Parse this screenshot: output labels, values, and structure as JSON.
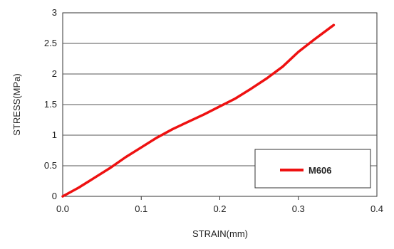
{
  "chart_data": {
    "type": "line",
    "title": "",
    "xlabel": "STRAIN(mm)",
    "ylabel": "STRESS(MPa)",
    "xlim": [
      0,
      0.4
    ],
    "ylim": [
      0,
      3
    ],
    "x_ticks": [
      "0.0",
      "0.1",
      "0.2",
      "0.3",
      "0.4"
    ],
    "y_ticks": [
      "0",
      "0.5",
      "1",
      "1.5",
      "2",
      "2.5",
      "3"
    ],
    "grid": "horizontal",
    "legend_position": "bottom-right",
    "series": [
      {
        "name": "M606",
        "color": "#ee1111",
        "x": [
          0,
          0.02,
          0.04,
          0.06,
          0.08,
          0.1,
          0.12,
          0.14,
          0.16,
          0.18,
          0.2,
          0.22,
          0.24,
          0.26,
          0.28,
          0.3,
          0.32,
          0.345
        ],
        "y": [
          0,
          0.14,
          0.3,
          0.46,
          0.64,
          0.8,
          0.96,
          1.1,
          1.22,
          1.34,
          1.47,
          1.6,
          1.76,
          1.93,
          2.12,
          2.36,
          2.56,
          2.8
        ]
      }
    ]
  }
}
